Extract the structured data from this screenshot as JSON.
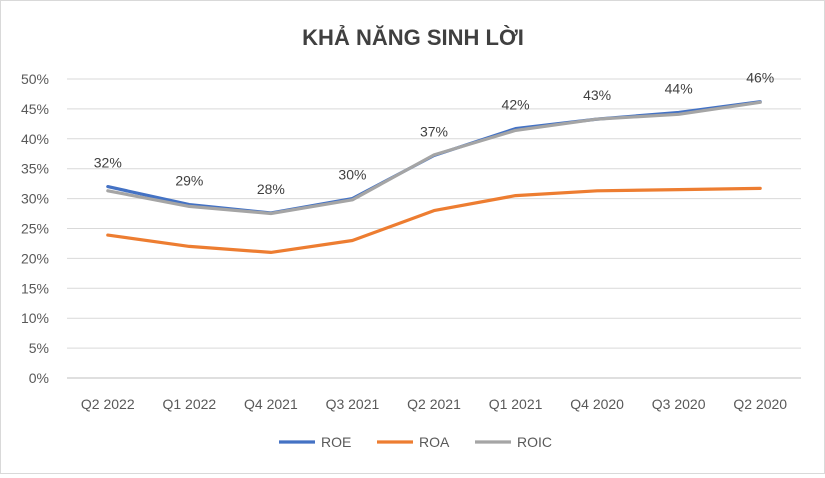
{
  "chart_data": {
    "type": "line",
    "title": "KHẢ NĂNG SINH LỜI",
    "categories": [
      "Q2 2022",
      "Q1 2022",
      "Q4 2021",
      "Q3 2021",
      "Q2 2021",
      "Q1 2021",
      "Q4 2020",
      "Q3 2020",
      "Q2 2020"
    ],
    "ylim": [
      0,
      50
    ],
    "yticks": [
      0,
      5,
      10,
      15,
      20,
      25,
      30,
      35,
      40,
      45,
      50
    ],
    "ytick_labels": [
      "0%",
      "5%",
      "10%",
      "15%",
      "20%",
      "25%",
      "30%",
      "35%",
      "40%",
      "45%",
      "50%"
    ],
    "grid": true,
    "legend": "bottom",
    "series": [
      {
        "name": "ROE",
        "color": "#4472c4",
        "values": [
          32,
          29,
          27.6,
          30,
          37.2,
          41.7,
          43.3,
          44.4,
          46.2
        ]
      },
      {
        "name": "ROA",
        "color": "#ed7d31",
        "values": [
          23.9,
          22,
          21,
          23,
          28,
          30.5,
          31.3,
          31.5,
          31.7
        ]
      },
      {
        "name": "ROIC",
        "color": "#a5a5a5",
        "values": [
          31.3,
          28.7,
          27.5,
          29.8,
          37.3,
          41.4,
          43.3,
          44.1,
          46.1
        ]
      }
    ],
    "data_labels": [
      "32%",
      "29%",
      "28%",
      "30%",
      "37%",
      "42%",
      "43%",
      "44%",
      "46%"
    ]
  }
}
